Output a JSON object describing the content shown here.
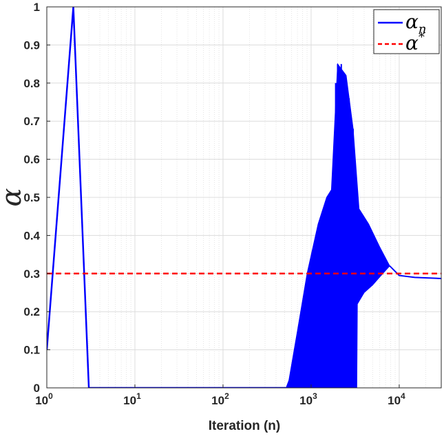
{
  "chart_data": {
    "type": "line",
    "title": "",
    "xlabel": "Iteration (n)",
    "ylabel": "α",
    "xscale": "log",
    "xlim": [
      1,
      30000
    ],
    "ylim": [
      0,
      1
    ],
    "grid": true,
    "legend_position": "top-right",
    "x_ticks": [
      {
        "value": 1,
        "base": "10",
        "exp": "0"
      },
      {
        "value": 10,
        "base": "10",
        "exp": "1"
      },
      {
        "value": 100,
        "base": "10",
        "exp": "2"
      },
      {
        "value": 1000,
        "base": "10",
        "exp": "3"
      },
      {
        "value": 10000,
        "base": "10",
        "exp": "4"
      }
    ],
    "y_ticks": [
      "0",
      "0.1",
      "0.2",
      "0.3",
      "0.4",
      "0.5",
      "0.6",
      "0.7",
      "0.8",
      "0.9",
      "1"
    ],
    "series": [
      {
        "name": "α_n",
        "legend_base": "α",
        "legend_sub": "n",
        "color": "#0000ff",
        "style": "solid",
        "points": [
          [
            1,
            0.1
          ],
          [
            2,
            1.0
          ],
          [
            3,
            0.0
          ],
          [
            520,
            0.0
          ]
        ],
        "oscillation_band": {
          "upper": [
            [
              520,
              0.0
            ],
            [
              560,
              0.02
            ],
            [
              700,
              0.15
            ],
            [
              900,
              0.3
            ],
            [
              1200,
              0.43
            ],
            [
              1500,
              0.5
            ],
            [
              1700,
              0.52
            ],
            [
              2000,
              0.85
            ],
            [
              2500,
              0.82
            ],
            [
              3000,
              0.68
            ],
            [
              3300,
              0.55
            ],
            [
              3500,
              0.47
            ],
            [
              4500,
              0.43
            ],
            [
              6000,
              0.37
            ],
            [
              7800,
              0.32
            ]
          ],
          "lower": [
            [
              520,
              0.0
            ],
            [
              3300,
              0.0
            ],
            [
              3350,
              0.22
            ],
            [
              4000,
              0.25
            ],
            [
              5000,
              0.27
            ],
            [
              6500,
              0.3
            ],
            [
              7800,
              0.32
            ]
          ]
        },
        "tail": [
          [
            7800,
            0.32
          ],
          [
            10000,
            0.295
          ],
          [
            15000,
            0.29
          ],
          [
            30000,
            0.287
          ]
        ]
      },
      {
        "name": "α*",
        "legend_base": "α",
        "legend_sup": "*",
        "color": "#ff0000",
        "style": "dashed",
        "points": [
          [
            1,
            0.3
          ],
          [
            30000,
            0.3
          ]
        ]
      }
    ]
  }
}
